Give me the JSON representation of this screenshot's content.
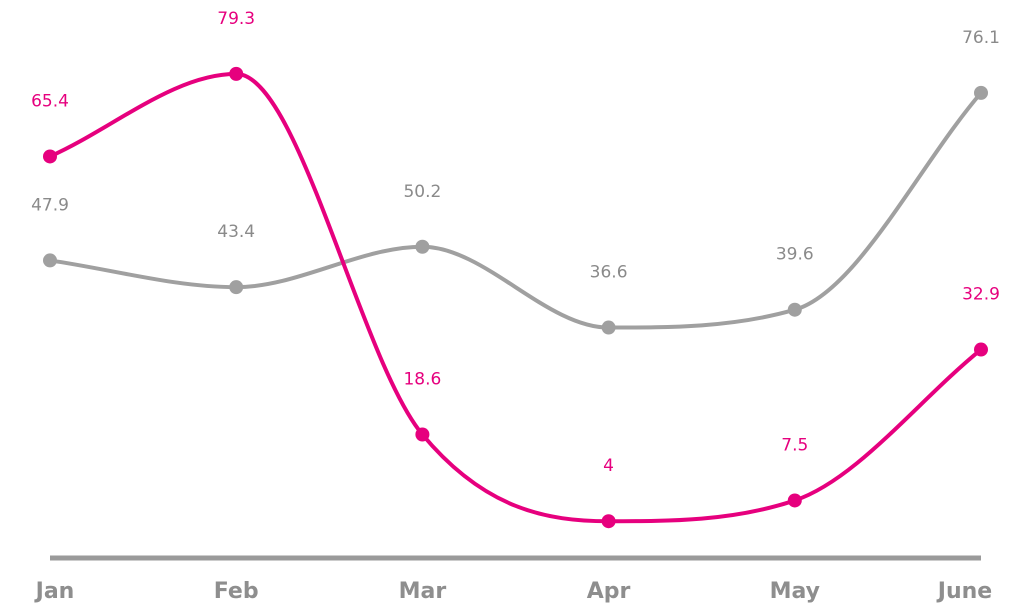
{
  "chart_data": {
    "type": "line",
    "categories": [
      "Jan",
      "Feb",
      "Mar",
      "Apr",
      "May",
      "June"
    ],
    "series": [
      {
        "values": [
          65.4,
          79.3,
          18.6,
          4,
          7.5,
          32.9
        ],
        "color": "#e6007e"
      },
      {
        "values": [
          47.9,
          43.4,
          50.2,
          36.6,
          39.6,
          76.1
        ],
        "color": "#a0a0a0"
      }
    ],
    "ylim": [
      0,
      85
    ],
    "grid": false,
    "legend": "none",
    "smooth": true,
    "axis_color": "#9a9a9a"
  }
}
